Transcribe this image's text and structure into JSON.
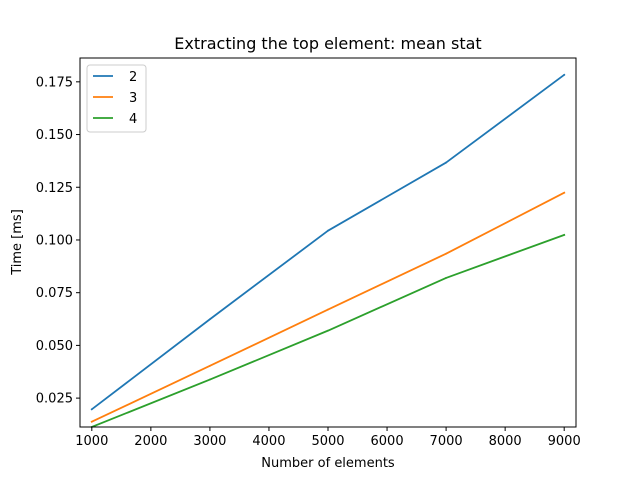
{
  "chart_data": {
    "type": "line",
    "title": "Extracting the top element: mean stat",
    "xlabel": "Number of elements",
    "ylabel": "Time [ms]",
    "xlim": [
      800,
      9200
    ],
    "ylim": [
      0.0113,
      0.1863
    ],
    "xticks": [
      1000,
      2000,
      3000,
      4000,
      5000,
      6000,
      7000,
      8000,
      9000
    ],
    "yticks": [
      0.025,
      0.05,
      0.075,
      0.1,
      0.125,
      0.15,
      0.175
    ],
    "ytick_labels": [
      "0.025",
      "0.050",
      "0.075",
      "0.100",
      "0.125",
      "0.150",
      "0.175"
    ],
    "x": [
      1000,
      3000,
      5000,
      7000,
      9000
    ],
    "grid": false,
    "legend": "upper-left",
    "series": [
      {
        "name": "2",
        "color": "#1f77b4",
        "values": [
          0.0197,
          0.0624,
          0.1044,
          0.1367,
          0.1783
        ]
      },
      {
        "name": "3",
        "color": "#ff7f0e",
        "values": [
          0.0138,
          0.0403,
          0.067,
          0.0935,
          0.1224
        ]
      },
      {
        "name": "4",
        "color": "#2ca02c",
        "values": [
          0.0113,
          0.0338,
          0.057,
          0.082,
          0.1024
        ]
      }
    ]
  }
}
